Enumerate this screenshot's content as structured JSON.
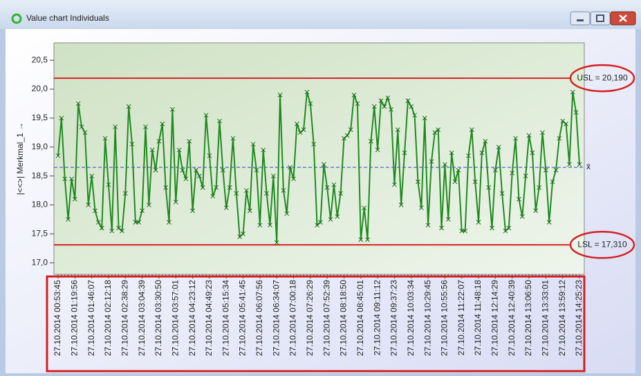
{
  "window_title": "Value chart Individuals",
  "chart_data": {
    "type": "line",
    "y_label": "|<<>| Merkmal_1 →",
    "color": "#1f8a1f",
    "marker": "x",
    "ylim": [
      16.8,
      20.8
    ],
    "yticks": [
      {
        "value": 17.0,
        "label": "17,0"
      },
      {
        "value": 17.5,
        "label": "17,5"
      },
      {
        "value": 18.0,
        "label": "18,0"
      },
      {
        "value": 18.5,
        "label": "18,5"
      },
      {
        "value": 19.0,
        "label": "19,0"
      },
      {
        "value": 19.5,
        "label": "19,5"
      },
      {
        "value": 20.0,
        "label": "20,0"
      },
      {
        "value": 20.5,
        "label": "20,5"
      }
    ],
    "limits": {
      "usl": 20.19,
      "usl_label": "USL = 20,190",
      "lsl": 17.31,
      "lsl_label": "LSL = 17,310",
      "mean": 18.65,
      "mean_label": "x̄"
    },
    "limit_color": "#d42020",
    "mean_color": "#3040d0",
    "categories": [
      "27.10.2014 00:53:45",
      null,
      null,
      null,
      null,
      "27.10.2014 01:19:56",
      null,
      null,
      null,
      null,
      "27.10.2014 01:46:07",
      null,
      null,
      null,
      null,
      "27.10.2014 02:12:18",
      null,
      null,
      null,
      null,
      "27.10.2014 02:38:29",
      null,
      null,
      null,
      null,
      "27.10.2014 03:04:39",
      null,
      null,
      null,
      null,
      "27.10.2014 03:30:50",
      null,
      null,
      null,
      null,
      "27.10.2014 03:57:01",
      null,
      null,
      null,
      null,
      "27.10.2014 04:23:12",
      null,
      null,
      null,
      null,
      "27.10.2014 04:49:23",
      null,
      null,
      null,
      null,
      "27.10.2014 05:15:34",
      null,
      null,
      null,
      null,
      "27.10.2014 05:41:45",
      null,
      null,
      null,
      null,
      "27.10.2014 06:07:56",
      null,
      null,
      null,
      null,
      "27.10.2014 06:34:07",
      null,
      null,
      null,
      null,
      "27.10.2014 07:00:18",
      null,
      null,
      null,
      null,
      "27.10.2014 07:26:29",
      null,
      null,
      null,
      null,
      "27.10.2014 07:52:39",
      null,
      null,
      null,
      null,
      "27.10.2014 08:18:50",
      null,
      null,
      null,
      null,
      "27.10.2014 08:45:01",
      null,
      null,
      null,
      null,
      "27.10.2014 09:11:12",
      null,
      null,
      null,
      null,
      "27.10.2014 09:37:23",
      null,
      null,
      null,
      null,
      "27.10.2014 10:03:34",
      null,
      null,
      null,
      null,
      "27.10.2014 10:29:45",
      null,
      null,
      null,
      null,
      "27.10.2014 10:55:56",
      null,
      null,
      null,
      null,
      "27.10.2014 11:22:07",
      null,
      null,
      null,
      null,
      "27.10.2014 11:48:18",
      null,
      null,
      null,
      null,
      "27.10.2014 12:14:29",
      null,
      null,
      null,
      null,
      "27.10.2014 12:40:39",
      null,
      null,
      null,
      null,
      "27.10.2014 13:06:50",
      null,
      null,
      null,
      null,
      "27.10.2014 13:33:01",
      null,
      null,
      null,
      null,
      "27.10.2014 13:59:12",
      null,
      null,
      null,
      null,
      "27.10.2014 14:25:23"
    ],
    "values": [
      18.85,
      19.5,
      18.45,
      17.75,
      18.45,
      18.1,
      19.75,
      19.35,
      19.25,
      18.0,
      18.5,
      17.9,
      17.7,
      17.6,
      19.15,
      18.35,
      17.55,
      19.35,
      17.6,
      17.55,
      18.2,
      19.7,
      19.05,
      17.7,
      17.7,
      17.9,
      19.35,
      18.0,
      18.95,
      18.6,
      19.1,
      19.4,
      18.3,
      17.7,
      19.65,
      18.05,
      18.95,
      18.6,
      18.45,
      19.1,
      17.9,
      18.6,
      18.5,
      18.3,
      19.55,
      18.85,
      18.15,
      18.3,
      19.45,
      18.6,
      17.95,
      18.3,
      19.15,
      18.2,
      17.45,
      17.5,
      18.25,
      17.9,
      19.05,
      18.6,
      17.65,
      18.95,
      18.2,
      17.65,
      18.5,
      17.35,
      19.9,
      18.25,
      17.85,
      18.65,
      18.45,
      19.4,
      19.25,
      19.3,
      19.95,
      19.75,
      19.05,
      17.65,
      17.7,
      18.7,
      18.3,
      17.75,
      18.35,
      17.8,
      18.2,
      19.15,
      19.2,
      19.3,
      19.9,
      19.75,
      17.4,
      17.95,
      17.4,
      19.1,
      19.7,
      18.95,
      19.8,
      19.7,
      19.85,
      19.65,
      18.35,
      19.3,
      18.0,
      18.9,
      19.8,
      19.7,
      19.55,
      18.4,
      17.95,
      19.5,
      17.65,
      18.75,
      19.25,
      19.3,
      17.6,
      18.7,
      17.75,
      18.9,
      18.4,
      18.6,
      17.55,
      17.55,
      18.85,
      19.3,
      18.4,
      17.7,
      18.9,
      19.1,
      18.3,
      17.6,
      18.6,
      19.0,
      18.2,
      17.55,
      17.6,
      18.55,
      19.15,
      18.1,
      17.8,
      18.5,
      19.2,
      18.9,
      17.9,
      18.3,
      19.25,
      18.6,
      17.7,
      18.4,
      18.6,
      19.15,
      19.45,
      19.4,
      18.7,
      19.95,
      19.6,
      18.7
    ]
  }
}
